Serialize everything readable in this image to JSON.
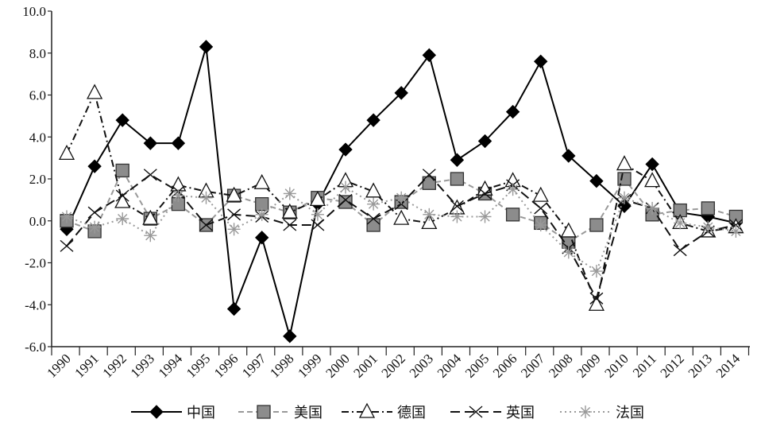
{
  "chart_data": {
    "type": "line",
    "title": "",
    "xlabel": "",
    "ylabel": "",
    "ylim": [
      -6,
      10
    ],
    "yticks": [
      "10.0",
      "8.0",
      "6.0",
      "4.0",
      "2.0",
      "0.0",
      "-2.0",
      "-4.0",
      "-6.0"
    ],
    "ytick_values": [
      10,
      8,
      6,
      4,
      2,
      0,
      -2,
      -4,
      -6
    ],
    "grid": false,
    "legend_position": "bottom",
    "x": [
      "1990",
      "1991",
      "1992",
      "1993",
      "1994",
      "1995",
      "1996",
      "1997",
      "1998",
      "1999",
      "2000",
      "2001",
      "2002",
      "2003",
      "2004",
      "2005",
      "2006",
      "2007",
      "2008",
      "2009",
      "2010",
      "2011",
      "2012",
      "2013",
      "2014"
    ],
    "series": [
      {
        "name": "中国",
        "marker": "diamond",
        "color": "#000000",
        "dash": "",
        "fill": "#000000",
        "values": [
          -0.4,
          2.6,
          4.8,
          3.7,
          3.7,
          8.3,
          -4.2,
          -0.8,
          -5.5,
          0.8,
          3.4,
          4.8,
          6.1,
          7.9,
          2.9,
          3.8,
          5.2,
          7.6,
          3.1,
          1.9,
          0.7,
          2.7,
          0.4,
          0.2,
          -0.1
        ]
      },
      {
        "name": "美国",
        "marker": "square",
        "color": "#999999",
        "dash": "7,4",
        "fill": "#8c8c8c",
        "values": [
          0.0,
          -0.5,
          2.4,
          0.1,
          0.8,
          -0.2,
          1.2,
          0.8,
          0.4,
          1.1,
          0.9,
          -0.2,
          0.9,
          1.8,
          2.0,
          1.3,
          0.3,
          -0.1,
          -1.0,
          -0.2,
          2.0,
          0.3,
          0.5,
          0.6,
          0.2
        ]
      },
      {
        "name": "德国",
        "marker": "triangle",
        "color": "#111111",
        "dash": "9,4,2,4",
        "fill": "#ffffff",
        "values": [
          3.2,
          6.1,
          0.9,
          0.1,
          1.7,
          1.4,
          1.2,
          1.8,
          0.4,
          1.0,
          1.9,
          1.4,
          0.1,
          -0.1,
          0.6,
          1.5,
          1.9,
          1.2,
          -0.5,
          -4.0,
          2.7,
          1.9,
          -0.1,
          -0.5,
          -0.3
        ]
      },
      {
        "name": "英国",
        "marker": "x",
        "color": "#111111",
        "dash": "12,6",
        "fill": "none",
        "values": [
          -1.2,
          0.4,
          1.2,
          2.2,
          1.4,
          -0.2,
          0.3,
          0.2,
          -0.2,
          -0.2,
          1.0,
          0.1,
          0.8,
          2.2,
          0.7,
          1.3,
          1.7,
          0.6,
          -1.3,
          -3.7,
          1.0,
          0.6,
          -1.4,
          -0.5,
          -0.2
        ]
      },
      {
        "name": "法国",
        "marker": "asterisk",
        "color": "#9a9a9a",
        "dash": "2,4",
        "fill": "none",
        "values": [
          0.2,
          -0.3,
          0.1,
          -0.7,
          1.2,
          1.1,
          -0.4,
          0.3,
          1.3,
          0.3,
          1.6,
          0.8,
          1.1,
          0.3,
          0.2,
          0.2,
          1.5,
          -0.2,
          -1.5,
          -2.4,
          1.1,
          0.6,
          -0.1,
          -0.3,
          -0.5
        ]
      }
    ]
  }
}
